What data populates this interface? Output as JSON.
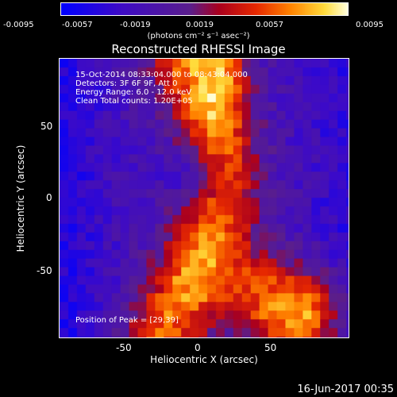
{
  "colorbar": {
    "ticks": [
      "-0.0095",
      "-0.0057",
      "-0.0019",
      "0.0019",
      "0.0057",
      "0.0095"
    ],
    "unit": "(photons cm⁻² s⁻¹ asec⁻²)"
  },
  "title": "Reconstructed RHESSI Image",
  "info": {
    "line1": "15-Oct-2014 08:33:04.000 to 08:43:04.000",
    "line2": "Detectors: 3F 6F 9F, Att 0",
    "line3": "Energy Range: 6.0 - 12.0 keV",
    "line4": "Clean     Total counts: 1.20E+05",
    "peak": "Position of Peak = [29,39]"
  },
  "axes": {
    "xlabel": "Heliocentric X (arcsec)",
    "ylabel": "Heliocentric Y (arcsec)",
    "xticks": [
      "-50",
      "0",
      "50"
    ],
    "yticks": [
      "50",
      "0",
      "-50"
    ]
  },
  "date_stamp": "16-Jun-2017 00:35"
}
